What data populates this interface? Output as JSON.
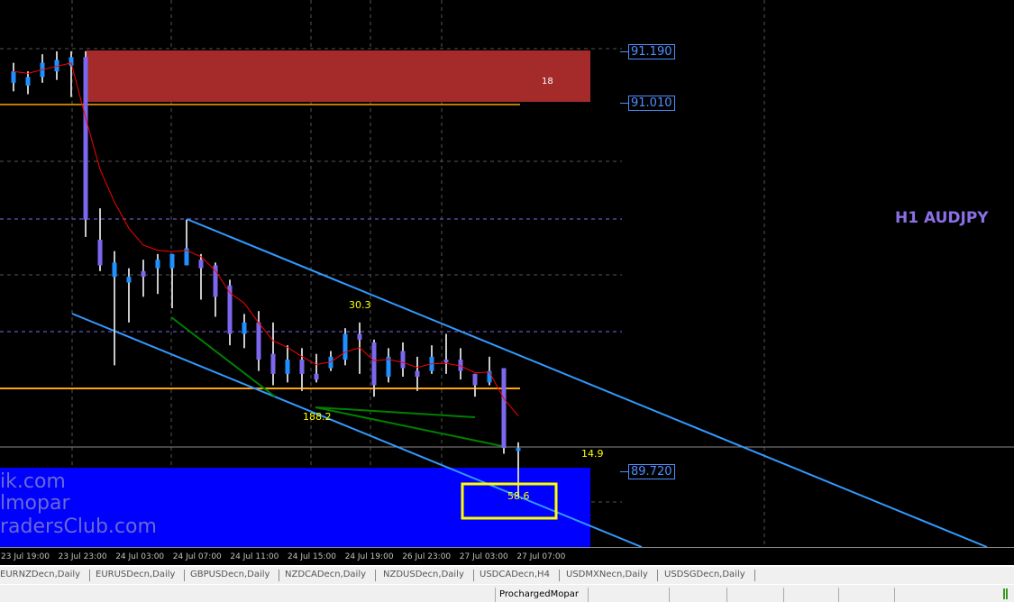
{
  "chart": {
    "symbol_title": "H1 AUDJPY",
    "price_labels": [
      {
        "value": "91.190",
        "price": 91.19
      },
      {
        "value": "91.010",
        "price": 91.01
      },
      {
        "value": "89.720",
        "price": 89.72
      }
    ],
    "zone_red_label": "18",
    "annotations": {
      "a1": "30.3",
      "a2": "188.2",
      "a3": "14.9",
      "a4": "58.6"
    },
    "watermark": [
      "ik.com",
      "lmopar",
      "radersClub.com"
    ],
    "colors": {
      "background": "#000000",
      "bull": "#1e90ff",
      "bear": "#7b68ee",
      "wick": "#c8c8c8",
      "ma": "#ff0000",
      "channel": "#3399ff",
      "supply_zone": "#a52a2a",
      "demand_zone": "#0000ff",
      "highlight_box": "#ffff00",
      "trend_lines": "#008000",
      "level_lines": "#ffa500"
    },
    "candles": [
      [
        91.08,
        91.15,
        91.05,
        91.12
      ],
      [
        91.07,
        91.12,
        91.04,
        91.1
      ],
      [
        91.1,
        91.18,
        91.08,
        91.15
      ],
      [
        91.12,
        91.19,
        91.09,
        91.16
      ],
      [
        91.14,
        91.19,
        91.03,
        91.17
      ],
      [
        91.17,
        91.19,
        90.54,
        90.6
      ],
      [
        90.53,
        90.64,
        90.42,
        90.44
      ],
      [
        90.4,
        90.49,
        90.09,
        90.45
      ],
      [
        90.38,
        90.43,
        90.24,
        90.4
      ],
      [
        90.42,
        90.46,
        90.33,
        90.4
      ],
      [
        90.43,
        90.48,
        90.34,
        90.46
      ],
      [
        90.43,
        90.48,
        90.29,
        90.48
      ],
      [
        90.44,
        90.6,
        90.44,
        90.5
      ],
      [
        90.46,
        90.48,
        90.32,
        90.43
      ],
      [
        90.44,
        90.45,
        90.26,
        90.33
      ],
      [
        90.37,
        90.39,
        90.16,
        90.2
      ],
      [
        90.2,
        90.27,
        90.15,
        90.24
      ],
      [
        90.24,
        90.28,
        90.07,
        90.11
      ],
      [
        90.13,
        90.24,
        90.02,
        90.06
      ],
      [
        90.06,
        90.16,
        90.03,
        90.11
      ],
      [
        90.11,
        90.15,
        90.0,
        90.06
      ],
      [
        90.06,
        90.13,
        90.03,
        90.04
      ],
      [
        90.08,
        90.14,
        90.07,
        90.12
      ],
      [
        90.11,
        90.22,
        90.09,
        90.2
      ],
      [
        90.2,
        90.24,
        90.06,
        90.18
      ],
      [
        90.17,
        90.18,
        89.98,
        90.02
      ],
      [
        90.05,
        90.15,
        90.03,
        90.12
      ],
      [
        90.14,
        90.17,
        90.05,
        90.08
      ],
      [
        90.07,
        90.12,
        90.0,
        90.05
      ],
      [
        90.07,
        90.16,
        90.06,
        90.12
      ],
      [
        90.11,
        90.2,
        90.06,
        90.1
      ],
      [
        90.11,
        90.15,
        90.04,
        90.07
      ],
      [
        90.06,
        90.06,
        89.98,
        90.02
      ],
      [
        90.03,
        90.12,
        90.02,
        90.07
      ],
      [
        90.08,
        90.08,
        89.78,
        89.8
      ],
      [
        89.79,
        89.82,
        89.63,
        89.8
      ]
    ]
  },
  "xaxis": {
    "labels": [
      "23 Jul 19:00",
      "23 Jul 23:00",
      "24 Jul 03:00",
      "24 Jul 07:00",
      "24 Jul 11:00",
      "24 Jul 15:00",
      "24 Jul 19:00",
      "26 Jul 23:00",
      "27 Jul 03:00",
      "27 Jul 07:00"
    ]
  },
  "tabs": [
    "EURNZDecn,Daily",
    "EURUSDecn,Daily",
    "GBPUSDecn,Daily",
    "NZDCADecn,Daily",
    "NZDUSDecn,Daily",
    "USDCADecn,H4",
    "USDMXNecn,Daily",
    "USDSGDecn,Daily"
  ],
  "status": {
    "profile": "ProchargedMopar"
  }
}
